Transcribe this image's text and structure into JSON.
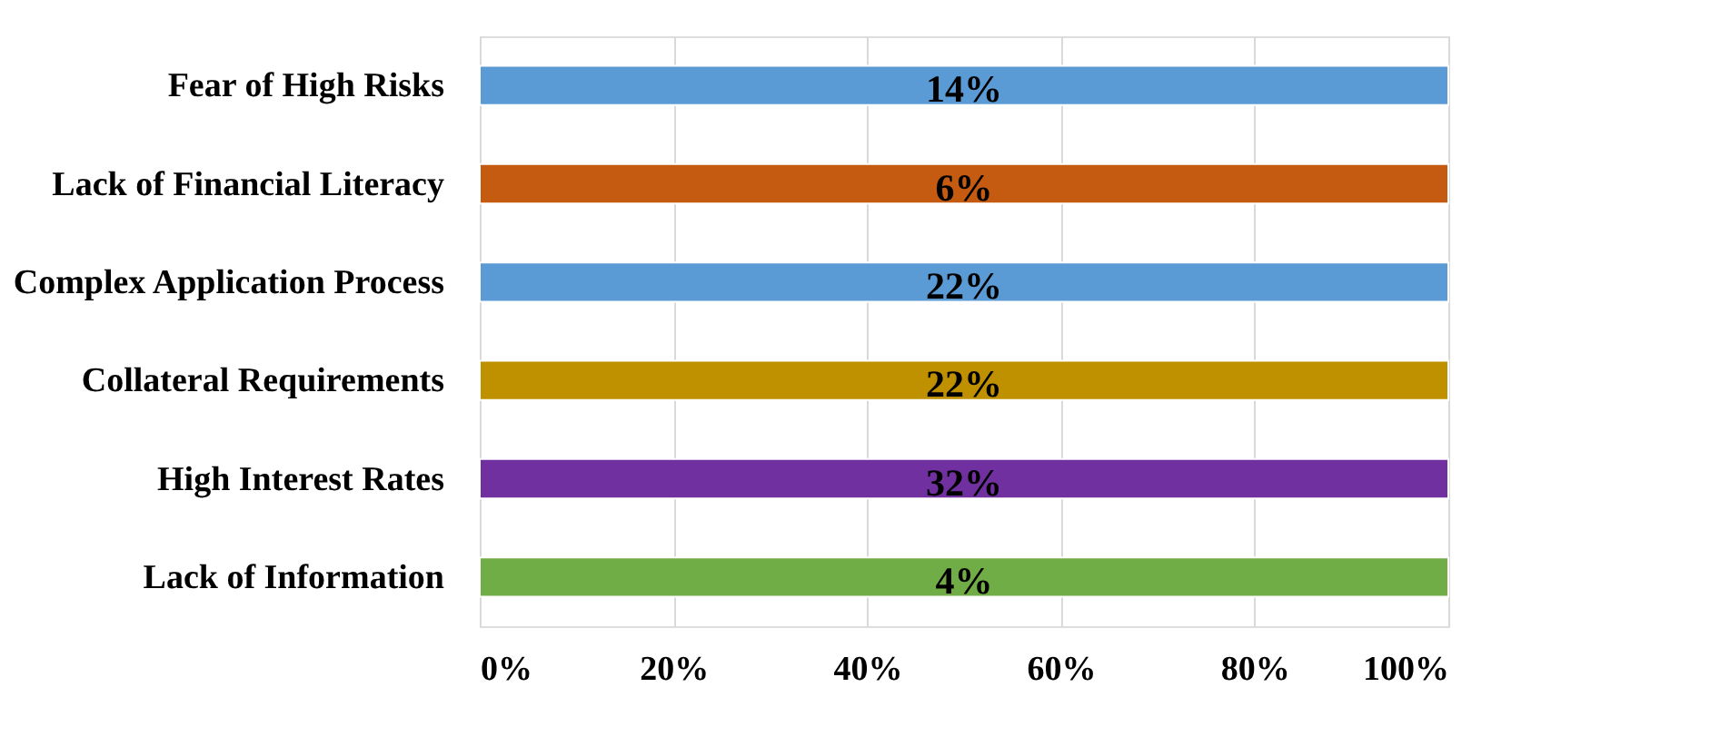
{
  "chart_data": {
    "type": "bar",
    "orientation": "horizontal",
    "categories": [
      "Fear of High Risks",
      "Lack of Financial Literacy",
      "Complex Application Process",
      "Collateral Requirements",
      "High Interest Rates",
      "Lack of Information"
    ],
    "values": [
      100,
      100,
      100,
      100,
      100,
      100
    ],
    "colors": [
      "#5b9bd5",
      "#c55a11",
      "#5b9bd5",
      "#bf9000",
      "#7030a0",
      "#70ad47"
    ],
    "annotations": [
      "14%",
      "6%",
      "22%",
      "22%",
      "32%",
      "4%"
    ],
    "xlim": [
      0,
      100
    ],
    "xticks": [
      {
        "value": 0,
        "label": "0%"
      },
      {
        "value": 20,
        "label": "20%"
      },
      {
        "value": 40,
        "label": "40%"
      },
      {
        "value": 60,
        "label": "60%"
      },
      {
        "value": 80,
        "label": "80%"
      },
      {
        "value": 100,
        "label": "100%"
      }
    ],
    "grid": "x"
  }
}
